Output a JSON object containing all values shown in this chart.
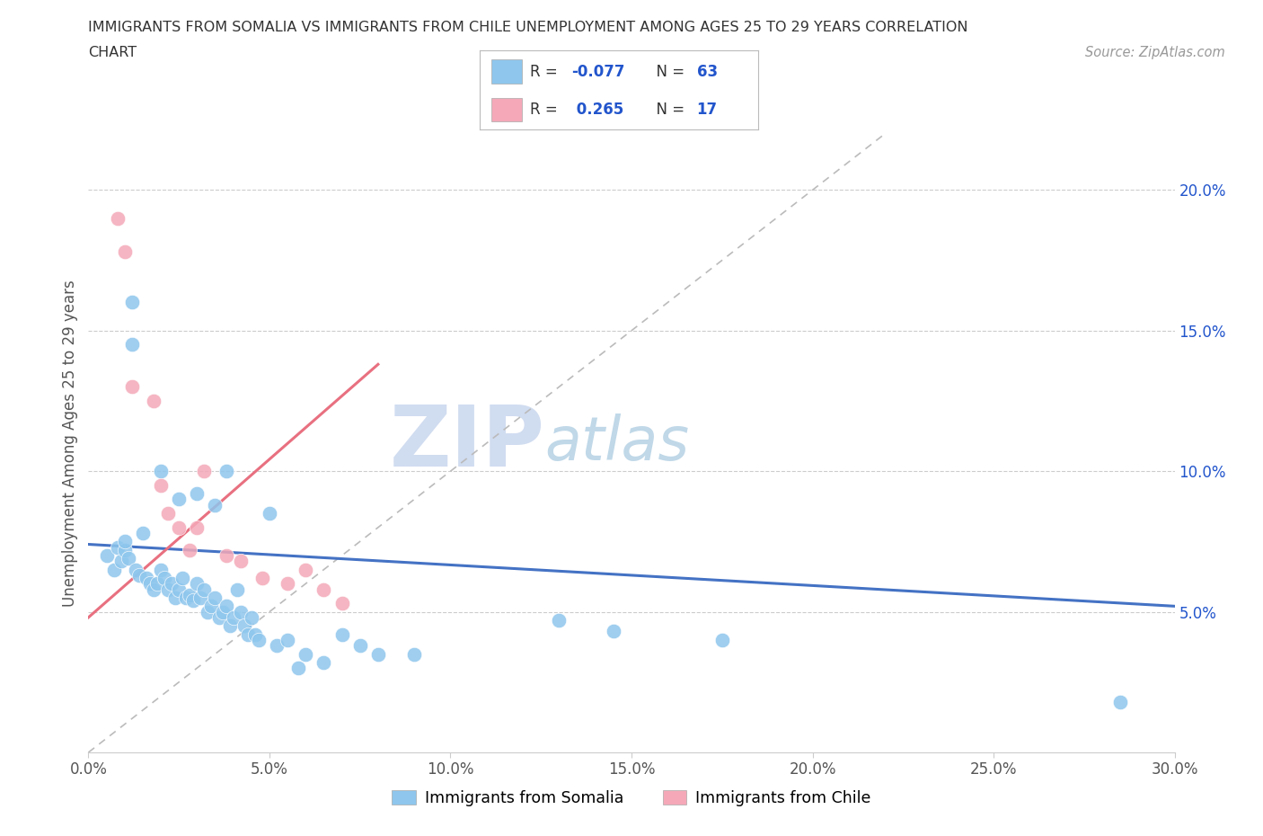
{
  "title_line1": "IMMIGRANTS FROM SOMALIA VS IMMIGRANTS FROM CHILE UNEMPLOYMENT AMONG AGES 25 TO 29 YEARS CORRELATION",
  "title_line2": "CHART",
  "source_text": "Source: ZipAtlas.com",
  "ylabel": "Unemployment Among Ages 25 to 29 years",
  "xlim": [
    0.0,
    0.3
  ],
  "ylim": [
    0.0,
    0.22
  ],
  "xticks": [
    0.0,
    0.05,
    0.1,
    0.15,
    0.2,
    0.25,
    0.3
  ],
  "yticks_right": [
    0.05,
    0.1,
    0.15,
    0.2
  ],
  "ytick_labels_right": [
    "5.0%",
    "10.0%",
    "15.0%",
    "20.0%"
  ],
  "xtick_labels": [
    "0.0%",
    "5.0%",
    "10.0%",
    "15.0%",
    "20.0%",
    "25.0%",
    "30.0%"
  ],
  "somalia_color": "#8EC6ED",
  "chile_color": "#F4A8B8",
  "somalia_R": -0.077,
  "somalia_N": 63,
  "chile_R": 0.265,
  "chile_N": 17,
  "somalia_x": [
    0.005,
    0.007,
    0.008,
    0.009,
    0.01,
    0.01,
    0.011,
    0.012,
    0.013,
    0.014,
    0.015,
    0.016,
    0.017,
    0.018,
    0.019,
    0.02,
    0.021,
    0.022,
    0.023,
    0.024,
    0.025,
    0.026,
    0.027,
    0.028,
    0.029,
    0.03,
    0.031,
    0.032,
    0.033,
    0.034,
    0.035,
    0.036,
    0.037,
    0.038,
    0.039,
    0.04,
    0.041,
    0.042,
    0.043,
    0.044,
    0.045,
    0.046,
    0.047,
    0.05,
    0.052,
    0.055,
    0.058,
    0.06,
    0.065,
    0.07,
    0.075,
    0.08,
    0.09,
    0.13,
    0.145,
    0.175,
    0.285,
    0.012,
    0.02,
    0.025,
    0.03,
    0.035,
    0.038
  ],
  "somalia_y": [
    0.07,
    0.065,
    0.073,
    0.068,
    0.072,
    0.075,
    0.069,
    0.16,
    0.065,
    0.063,
    0.078,
    0.062,
    0.06,
    0.058,
    0.06,
    0.065,
    0.062,
    0.058,
    0.06,
    0.055,
    0.058,
    0.062,
    0.055,
    0.056,
    0.054,
    0.06,
    0.055,
    0.058,
    0.05,
    0.052,
    0.055,
    0.048,
    0.05,
    0.052,
    0.045,
    0.048,
    0.058,
    0.05,
    0.045,
    0.042,
    0.048,
    0.042,
    0.04,
    0.085,
    0.038,
    0.04,
    0.03,
    0.035,
    0.032,
    0.042,
    0.038,
    0.035,
    0.035,
    0.047,
    0.043,
    0.04,
    0.018,
    0.145,
    0.1,
    0.09,
    0.092,
    0.088,
    0.1
  ],
  "chile_x": [
    0.008,
    0.01,
    0.012,
    0.018,
    0.02,
    0.022,
    0.025,
    0.028,
    0.03,
    0.032,
    0.038,
    0.042,
    0.048,
    0.055,
    0.06,
    0.065,
    0.07
  ],
  "chile_y": [
    0.19,
    0.178,
    0.13,
    0.125,
    0.095,
    0.085,
    0.08,
    0.072,
    0.08,
    0.1,
    0.07,
    0.068,
    0.062,
    0.06,
    0.065,
    0.058,
    0.053
  ],
  "watermark_zip": "ZIP",
  "watermark_atlas": "atlas",
  "watermark_color_zip": "#D0DCF0",
  "watermark_color_atlas": "#C0D8E8",
  "trend_color_somalia": "#4472C4",
  "trend_color_chile": "#E87080",
  "identity_color": "#BBBBBB",
  "legend_R_color": "#2255CC",
  "legend_N_color": "#2255CC",
  "somalia_trend_x": [
    0.0,
    0.3
  ],
  "somalia_trend_y": [
    0.074,
    0.052
  ],
  "chile_trend_x": [
    0.0,
    0.08
  ],
  "chile_trend_y": [
    0.048,
    0.138
  ]
}
